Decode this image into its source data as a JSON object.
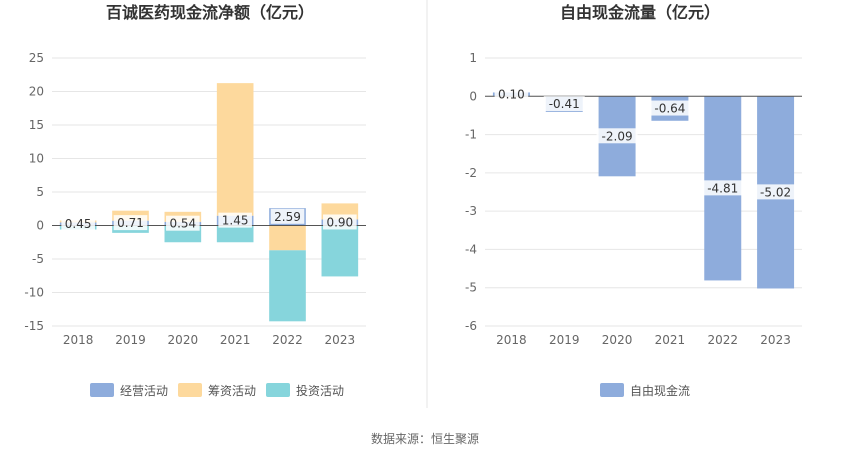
{
  "source_text": "数据来源：恒生聚源",
  "chart_data": [
    {
      "type": "bar",
      "stacked": true,
      "title": "百诚医药现金流净额（亿元）",
      "categories": [
        "2018",
        "2019",
        "2020",
        "2021",
        "2022",
        "2023"
      ],
      "ylim": [
        -15,
        25
      ],
      "yticks": [
        25,
        20,
        15,
        10,
        5,
        0,
        -5,
        -10,
        -15
      ],
      "grid": true,
      "legend_position": "bottom",
      "series": [
        {
          "name": "经营活动",
          "color": "#8eacdc",
          "values": [
            0.45,
            0.71,
            0.54,
            1.45,
            2.59,
            0.9
          ]
        },
        {
          "name": "筹资活动",
          "color": "#fdd99d",
          "values": [
            0.3,
            1.5,
            1.5,
            19.8,
            -3.7,
            2.4
          ]
        },
        {
          "name": "投资活动",
          "color": "#86d5dc",
          "values": [
            -0.6,
            -1.1,
            -2.5,
            -2.5,
            -10.6,
            -7.6
          ]
        }
      ],
      "data_labels": {
        "series": "经营活动",
        "texts": [
          "0.45",
          "0.71",
          "0.54",
          "1.45",
          "2.59",
          "0.90"
        ]
      }
    },
    {
      "type": "bar",
      "title": "自由现金流量（亿元）",
      "categories": [
        "2018",
        "2019",
        "2020",
        "2021",
        "2022",
        "2023"
      ],
      "ylim": [
        -6,
        1
      ],
      "yticks": [
        1,
        0,
        -1,
        -2,
        -3,
        -4,
        -5,
        -6
      ],
      "grid": true,
      "legend_position": "bottom",
      "series": [
        {
          "name": "自由现金流",
          "color": "#8eacdc",
          "values": [
            0.1,
            -0.41,
            -2.09,
            -0.64,
            -4.81,
            -5.02
          ]
        }
      ],
      "data_labels": {
        "series": "自由现金流",
        "texts": [
          "0.10",
          "-0.41",
          "-2.09",
          "-0.64",
          "-4.81",
          "-5.02"
        ]
      }
    }
  ]
}
